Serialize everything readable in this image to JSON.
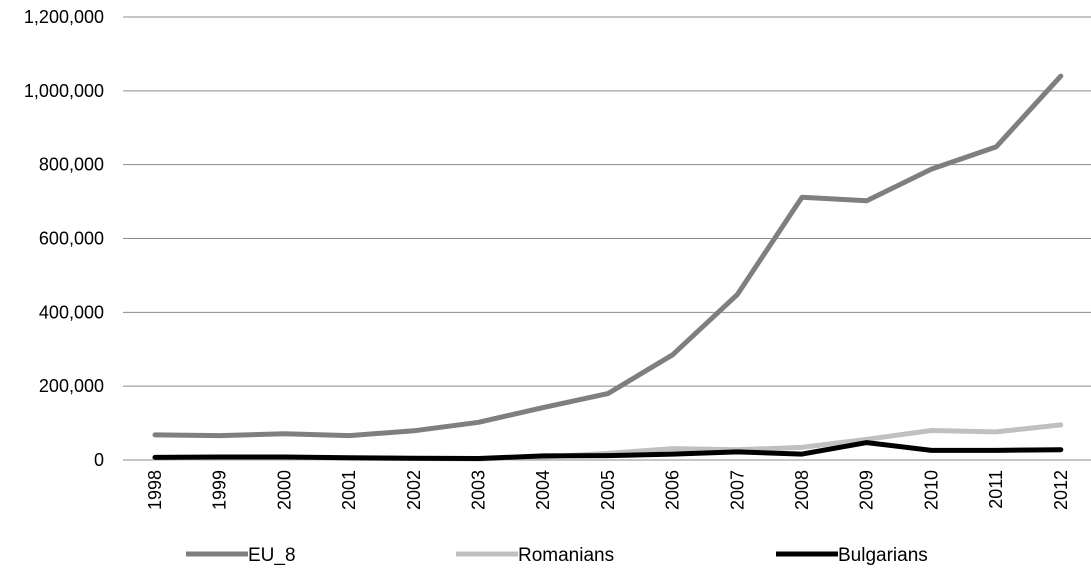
{
  "chart_data": {
    "type": "line",
    "title": "",
    "xlabel": "",
    "ylabel": "",
    "categories": [
      "1998",
      "1999",
      "2000",
      "2001",
      "2002",
      "2003",
      "2004",
      "2005",
      "2006",
      "2007",
      "2008",
      "2009",
      "2010",
      "2011",
      "2012"
    ],
    "ylim": [
      0,
      1200000
    ],
    "yticks": [
      0,
      200000,
      400000,
      600000,
      800000,
      1000000,
      1200000
    ],
    "ytick_labels": [
      "0",
      "200,000",
      "400,000",
      "600,000",
      "800,000",
      "1,000,000",
      "1,200,000"
    ],
    "grid": "horizontal",
    "legend_position": "bottom",
    "series": [
      {
        "name": "EU_8",
        "color": "#7f7f7f",
        "values": [
          68000,
          66000,
          71000,
          66000,
          79000,
          102000,
          142000,
          180000,
          285000,
          448000,
          712000,
          702000,
          788000,
          848000,
          1040000
        ]
      },
      {
        "name": "Romanians",
        "color": "#c0c0c0",
        "values": [
          5000,
          6000,
          6000,
          5000,
          4000,
          3000,
          8000,
          18000,
          31000,
          28000,
          34000,
          56000,
          80000,
          76000,
          95000
        ]
      },
      {
        "name": "Bulgarians",
        "color": "#000000",
        "values": [
          7000,
          8000,
          8000,
          6000,
          5000,
          4000,
          11000,
          12000,
          16000,
          22000,
          16000,
          47000,
          26000,
          26000,
          28000
        ]
      }
    ]
  }
}
